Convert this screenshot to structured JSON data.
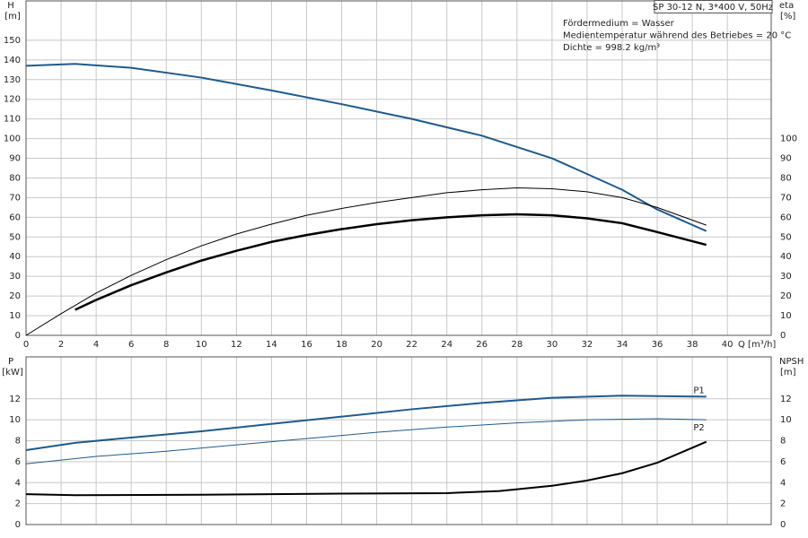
{
  "chart_data": [
    {
      "type": "line",
      "title": "SP 30-12 N, 3*400 V, 50Hz",
      "notes": [
        "Fördermedium = Wasser",
        "Medientemperatur während des Betriebes = 20 °C",
        "Dichte = 998.2 kg/m³"
      ],
      "xlabel": "Q [m³/h]",
      "ylabel": "H",
      "yunit": "[m]",
      "y2label": "eta",
      "y2unit": "[%]",
      "xlim": [
        0,
        42.5
      ],
      "xticks": [
        0,
        2,
        4,
        6,
        8,
        10,
        12,
        14,
        16,
        18,
        20,
        22,
        24,
        26,
        28,
        30,
        32,
        34,
        36,
        38,
        40
      ],
      "ylim": [
        0,
        170
      ],
      "yticks": [
        0,
        10,
        20,
        30,
        40,
        50,
        60,
        70,
        80,
        90,
        100,
        110,
        120,
        130,
        140,
        150
      ],
      "y2lim": [
        0,
        170
      ],
      "y2ticks": [
        0,
        10,
        20,
        30,
        40,
        50,
        60,
        70,
        80,
        90,
        100
      ],
      "grid": true,
      "series": [
        {
          "color": "#1f5a8c",
          "linewidth": 2,
          "x": [
            0,
            2.8,
            6,
            10,
            14,
            18,
            22,
            26,
            30,
            34,
            36,
            38.8
          ],
          "values": [
            137,
            138,
            136,
            131,
            124.5,
            117.5,
            110,
            101.5,
            90,
            74,
            64,
            53
          ]
        },
        {
          "color": "#000000",
          "linewidth": 1,
          "axis": "y2",
          "x": [
            0,
            2,
            4,
            6,
            8,
            10,
            12,
            14,
            16,
            18,
            20,
            22,
            24,
            26,
            28,
            30,
            32,
            34,
            36,
            38.8
          ],
          "values": [
            0,
            11,
            21.5,
            30.5,
            38.5,
            45.5,
            51.5,
            56.5,
            61,
            64.5,
            67.5,
            70,
            72.5,
            74,
            75,
            74.5,
            73,
            70,
            65,
            56
          ]
        },
        {
          "color": "#000000",
          "linewidth": 2.5,
          "axis": "y2",
          "x": [
            2.8,
            4,
            6,
            8,
            10,
            12,
            14,
            16,
            18,
            20,
            22,
            24,
            26,
            28,
            30,
            32,
            34,
            36,
            38.8
          ],
          "values": [
            13,
            18,
            25.5,
            32,
            38,
            43,
            47.5,
            51,
            54,
            56.5,
            58.5,
            60,
            61,
            61.5,
            61,
            59.5,
            57,
            52.5,
            46
          ]
        }
      ]
    },
    {
      "type": "line",
      "ylabel": "P",
      "yunit": "[kW]",
      "y2label": "NPSH",
      "y2unit": "[m]",
      "xlim": [
        0,
        42.5
      ],
      "xticks": [
        0,
        2,
        4,
        6,
        8,
        10,
        12,
        14,
        16,
        18,
        20,
        22,
        24,
        26,
        28,
        30,
        32,
        34,
        36,
        38,
        40
      ],
      "ylim": [
        0,
        16
      ],
      "yticks": [
        0,
        2,
        4,
        6,
        8,
        10,
        12
      ],
      "y2lim": [
        0,
        16
      ],
      "y2ticks": [
        0,
        2,
        4,
        6,
        8,
        10,
        12
      ],
      "grid": true,
      "series": [
        {
          "name": "P1",
          "color": "#1f5a8c",
          "linewidth": 2,
          "x": [
            0,
            2.8,
            6,
            10,
            14,
            18,
            22,
            26,
            30,
            34,
            38.8
          ],
          "values": [
            7.1,
            7.8,
            8.3,
            8.9,
            9.6,
            10.3,
            11.0,
            11.6,
            12.1,
            12.3,
            12.2
          ]
        },
        {
          "name": "P2",
          "color": "#1f5a8c",
          "linewidth": 1,
          "x": [
            0,
            4,
            8,
            12,
            16,
            20,
            24,
            28,
            32,
            36,
            38.8
          ],
          "values": [
            5.8,
            6.5,
            7.0,
            7.6,
            8.2,
            8.8,
            9.3,
            9.7,
            10.0,
            10.1,
            10.0
          ]
        },
        {
          "color": "#000000",
          "linewidth": 2,
          "axis": "y2",
          "x": [
            0,
            2.8,
            10,
            18,
            24,
            27,
            30,
            32,
            34,
            36,
            38.8
          ],
          "values": [
            2.9,
            2.8,
            2.85,
            2.95,
            3.0,
            3.2,
            3.7,
            4.2,
            4.9,
            5.9,
            7.9
          ]
        }
      ]
    }
  ]
}
